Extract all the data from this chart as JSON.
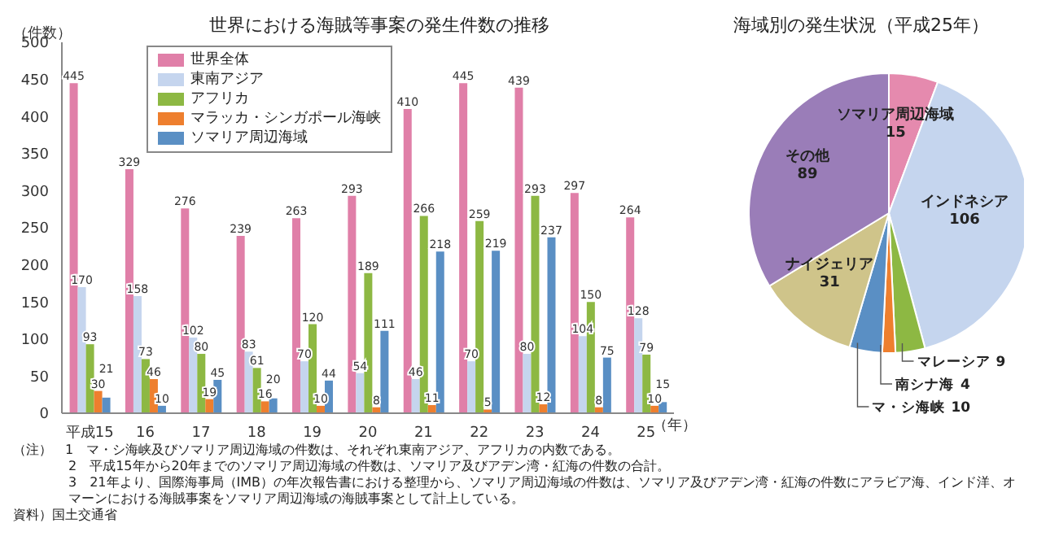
{
  "chart_data": [
    {
      "type": "bar",
      "title": "世界における海賊等事案の発生件数の推移",
      "ylabel": "（件数）",
      "xlabel": "（年）",
      "categories": [
        "平成15",
        "16",
        "17",
        "18",
        "19",
        "20",
        "21",
        "22",
        "23",
        "24",
        "25"
      ],
      "series": [
        {
          "name": "世界全体",
          "color": "#e07fa8",
          "values": [
            445,
            329,
            276,
            239,
            263,
            293,
            410,
            445,
            439,
            297,
            264
          ]
        },
        {
          "name": "東南アジア",
          "color": "#c5d5ee",
          "values": [
            170,
            158,
            102,
            83,
            70,
            54,
            46,
            70,
            80,
            104,
            128
          ]
        },
        {
          "name": "アフリカ",
          "color": "#8db843",
          "values": [
            93,
            73,
            80,
            61,
            120,
            189,
            266,
            259,
            293,
            150,
            79
          ]
        },
        {
          "name": "マラッカ・シンガポール海峡",
          "color": "#ee7f2e",
          "values": [
            30,
            46,
            19,
            16,
            10,
            8,
            11,
            5,
            12,
            8,
            10
          ]
        },
        {
          "name": "ソマリア周辺海域",
          "color": "#5a8fc4",
          "values": [
            21,
            10,
            45,
            20,
            44,
            111,
            218,
            219,
            237,
            75,
            15
          ]
        }
      ],
      "ylim": [
        0,
        500
      ],
      "yticks": [
        0,
        50,
        100,
        150,
        200,
        250,
        300,
        350,
        400,
        450,
        500
      ],
      "grid": false,
      "legend": "top",
      "data_labels": true,
      "annotations": [
        "（注）　1　マ・シ海峡及びソマリア周辺海域の件数は、それぞれ東南アジア、アフリカの内数である。",
        "2　平成15年から20年までのソマリア周辺海域の件数は、ソマリア及びアデン湾・紅海の件数の合計。",
        "3　21年より、国際海事局（IMB）の年次報告書における整理から、ソマリア周辺海域の件数は、ソマリア及びアデン湾・紅海の件数にアラビア海、インド洋、オマーンにおける海賊事案をソマリア周辺海域の海賊事案として計上している。",
        "資料）国土交通省"
      ]
    },
    {
      "type": "pie",
      "title": "海域別の発生状況（平成25年）",
      "categories": [
        "ソマリア周辺海域",
        "インドネシア",
        "マレーシア",
        "南シナ海",
        "マ・シ海峡",
        "ナイジェリア",
        "その他"
      ],
      "values": [
        15,
        106,
        9,
        4,
        10,
        31,
        89
      ],
      "colors": [
        "#e58aae",
        "#c5d5ee",
        "#8db843",
        "#ee7f2e",
        "#5a8fc4",
        "#cfc48a",
        "#9a7db8"
      ],
      "data_labels": true,
      "legend": false
    }
  ]
}
